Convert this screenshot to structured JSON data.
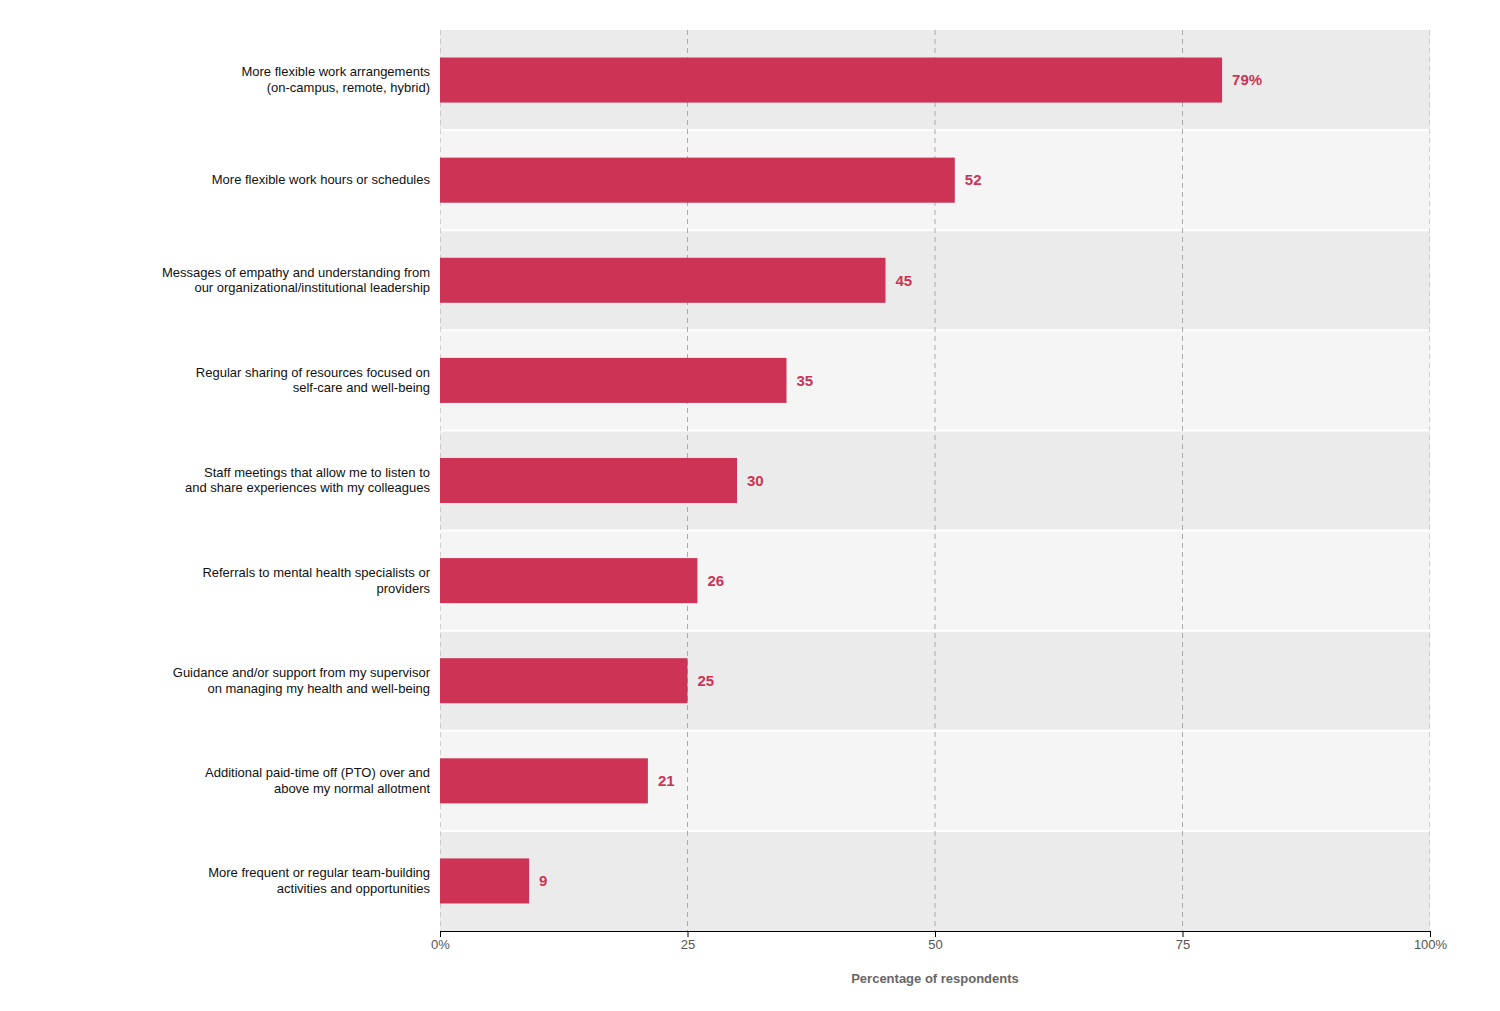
{
  "chart_data": {
    "type": "bar",
    "orientation": "horizontal",
    "categories": [
      "More frequent or regular team-building\nactivities and opportunities",
      "Additional paid-time off (PTO) over and\nabove my normal allotment",
      "Guidance and/or support from my supervisor\non managing my health and well-being",
      "Referrals to mental health specialists or\nproviders",
      "Staff meetings that allow me to listen to\nand share experiences with my colleagues",
      "Regular sharing of resources focused on\nself-care and well-being",
      "Messages of empathy and understanding from\nour organizational/institutional leadership",
      "More flexible work hours or schedules",
      "More flexible work arrangements\n(on-campus, remote, hybrid)"
    ],
    "values": [
      9,
      21,
      25,
      26,
      30,
      35,
      45,
      52,
      79
    ],
    "value_labels": [
      "9",
      "21",
      "25",
      "26",
      "30",
      "35",
      "45",
      "52",
      "79%"
    ],
    "data_labels": true,
    "color": "#cc3355",
    "xlim": [
      0,
      100
    ],
    "xticks": [
      {
        "value": 0,
        "label": "0%"
      },
      25,
      50,
      75,
      {
        "value": 100,
        "label": "100%"
      }
    ],
    "xlabel": "Percentage of respondents",
    "grid": true
  }
}
